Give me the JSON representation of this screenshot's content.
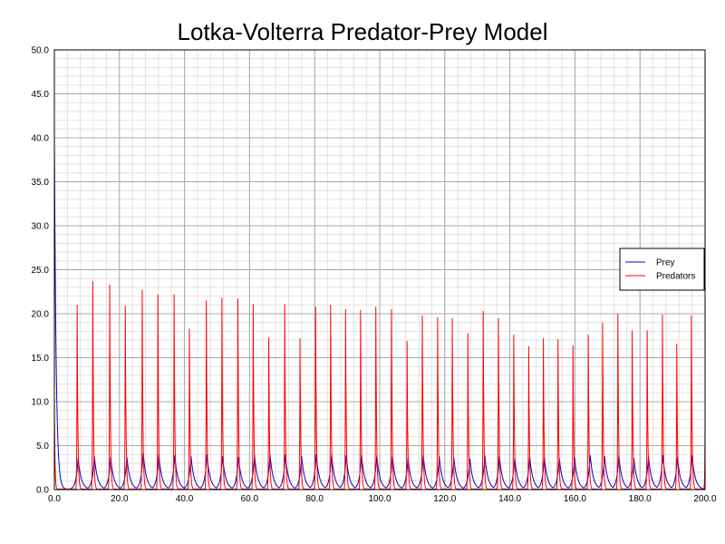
{
  "chart_data": {
    "type": "line",
    "title": "Lotka-Volterra Predator-Prey Model",
    "xlabel": "",
    "ylabel": "",
    "xlim": [
      0,
      200
    ],
    "ylim": [
      0,
      50
    ],
    "x_ticks": [
      "0.0",
      "20.0",
      "40.0",
      "60.0",
      "80.0",
      "100.0",
      "120.0",
      "140.0",
      "160.0",
      "180.0",
      "200.0"
    ],
    "y_ticks": [
      "0.0",
      "5.0",
      "10.0",
      "15.0",
      "20.0",
      "25.0",
      "30.0",
      "35.0",
      "40.0",
      "45.0",
      "50.0"
    ],
    "grid": true,
    "legend_position": "right",
    "series": [
      {
        "name": "Prey",
        "color": "#0000cc",
        "initial": 40.0,
        "peak_times": [
          7.3,
          12.3,
          17.3,
          22.3,
          27.3,
          32.1,
          37.0,
          42.0,
          46.9,
          51.7,
          56.6,
          61.5,
          66.3,
          71.0,
          76.0,
          80.5,
          85.2,
          89.7,
          94.4,
          99.1,
          103.9,
          108.7,
          113.4,
          118.3,
          122.8,
          127.7,
          132.3,
          136.8,
          141.5,
          146.1,
          150.6,
          155.2,
          159.9,
          164.7,
          169.1,
          173.5,
          178.1,
          182.6,
          187.0,
          191.5,
          196.0
        ],
        "peak_values": [
          3.6,
          3.8,
          3.7,
          3.7,
          4.2,
          4.0,
          3.9,
          3.8,
          4.0,
          3.8,
          3.7,
          4.0,
          4.0,
          4.0,
          3.8,
          4.0,
          4.0,
          3.9,
          4.0,
          3.9,
          3.8,
          3.6,
          3.9,
          3.8,
          3.6,
          3.5,
          3.9,
          3.8,
          3.6,
          3.8,
          3.7,
          3.6,
          3.6,
          3.9,
          3.8,
          3.9,
          3.6,
          3.8,
          3.9,
          3.7,
          3.9
        ]
      },
      {
        "name": "Predators",
        "color": "#ff0000",
        "initial": 9.5,
        "peak_times": [
          7.0,
          11.8,
          17.0,
          21.8,
          27.0,
          31.8,
          36.8,
          41.5,
          46.7,
          51.5,
          56.4,
          61.1,
          65.9,
          70.8,
          75.5,
          80.3,
          84.9,
          89.5,
          94.1,
          98.8,
          103.6,
          108.4,
          113.1,
          117.8,
          122.3,
          127.1,
          131.8,
          136.5,
          141.2,
          145.8,
          150.3,
          154.8,
          159.4,
          164.1,
          168.5,
          173.2,
          177.6,
          182.2,
          186.9,
          191.3,
          195.8,
          200.0
        ],
        "peak_values": [
          21.0,
          23.7,
          23.3,
          20.9,
          22.7,
          22.2,
          22.2,
          18.3,
          21.5,
          21.8,
          21.7,
          21.1,
          17.3,
          21.1,
          17.2,
          20.8,
          21.0,
          20.5,
          20.4,
          20.8,
          20.5,
          16.9,
          19.8,
          19.6,
          19.5,
          17.8,
          20.3,
          19.5,
          17.6,
          16.3,
          17.2,
          17.1,
          16.4,
          17.6,
          19.0,
          20.0,
          18.1,
          18.1,
          19.9,
          16.6,
          19.8,
          8.0
        ]
      }
    ]
  }
}
